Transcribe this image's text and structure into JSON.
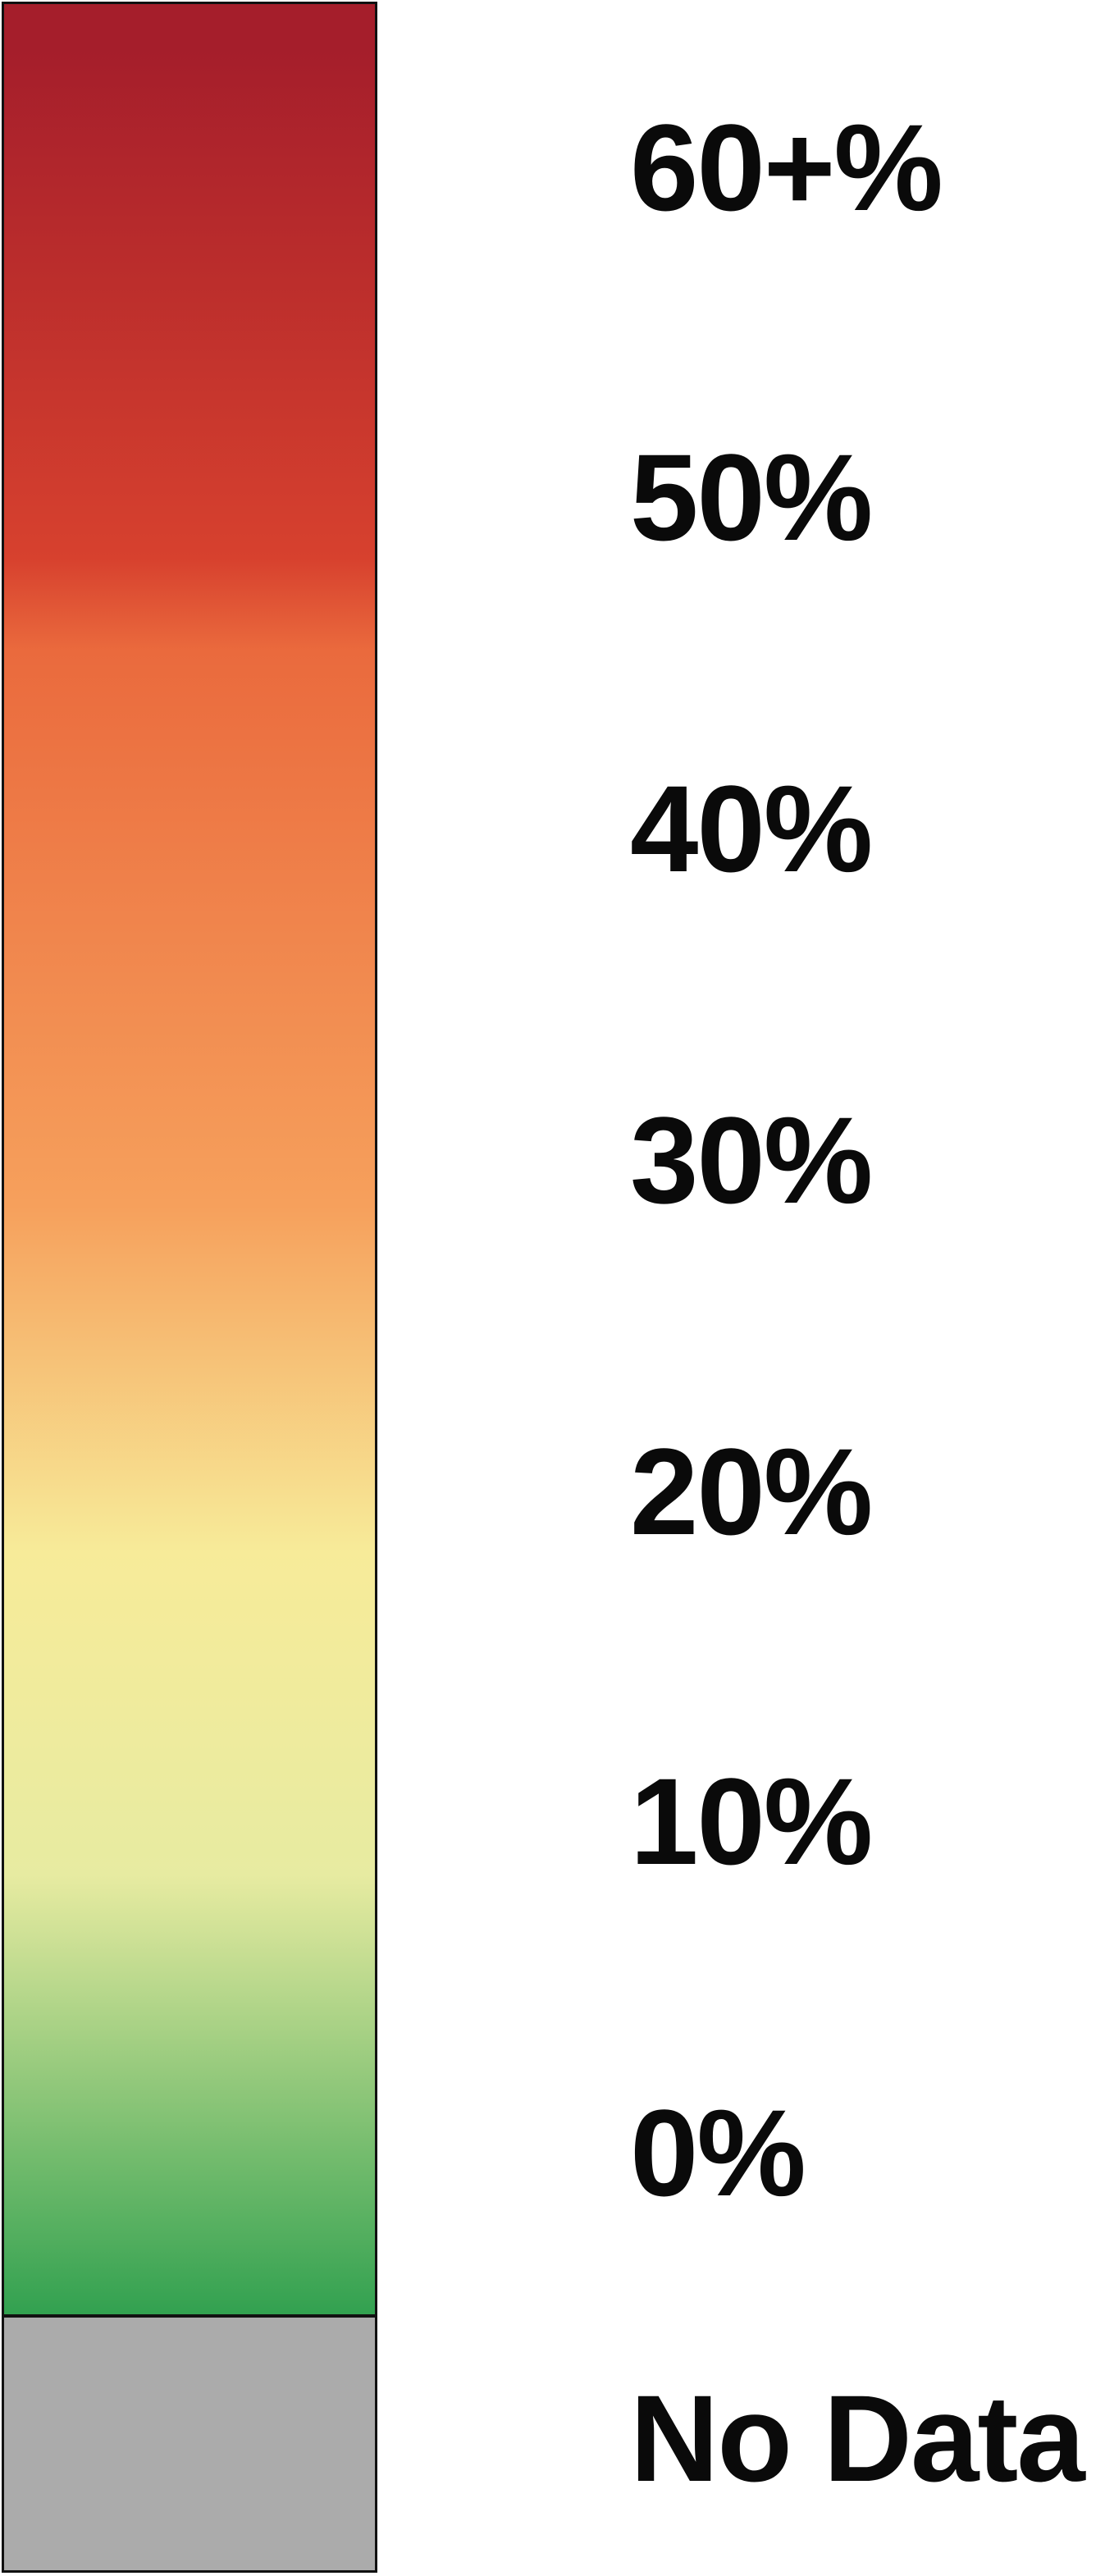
{
  "legend": {
    "stops": [
      {
        "label": "60+%",
        "value": 60,
        "color": "#a51e2b"
      },
      {
        "label": "50%",
        "value": 50,
        "color": "#d7412e"
      },
      {
        "label": "40%",
        "value": 40,
        "color": "#ea6a3d"
      },
      {
        "label": "30%",
        "value": 30,
        "color": "#f6a05c"
      },
      {
        "label": "20%",
        "value": 20,
        "color": "#f7eb99"
      },
      {
        "label": "10%",
        "value": 10,
        "color": "#e7eba1"
      },
      {
        "label": "0%",
        "value": 0,
        "color": "#32a150"
      }
    ],
    "no_data": {
      "label": "No Data",
      "color": "#ababab"
    },
    "border_color": "#111111",
    "text_color": "#0a0a0a"
  }
}
